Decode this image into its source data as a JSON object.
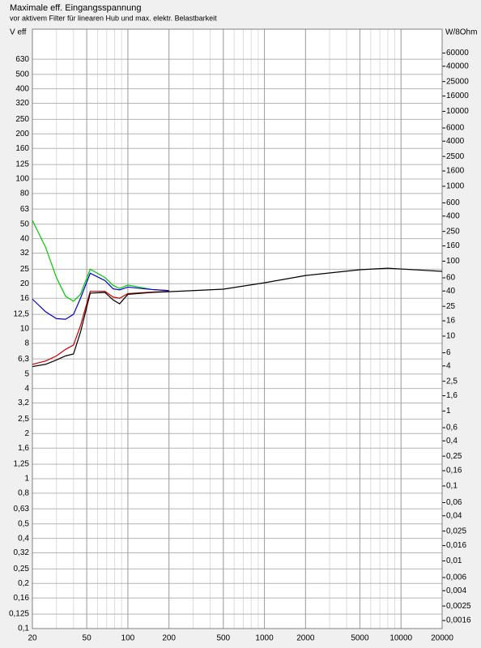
{
  "chart_data": {
    "type": "line",
    "title": "Maximale eff. Eingangsspannung",
    "subtitle": "vor aktivem Filter für linearen Hub und max. elektr. Belastbarkeit",
    "y_label": "V eff",
    "y2_label": "W/8Ohm",
    "log_x": true,
    "log_y": true,
    "grid": true,
    "x": [
      20,
      25,
      30,
      35,
      40,
      45,
      53,
      68,
      78,
      87,
      100,
      150,
      200,
      500,
      1000,
      2000,
      5000,
      8000,
      10000,
      20000
    ],
    "xlim": [
      20,
      20000
    ],
    "xticks": [
      20,
      50,
      100,
      200,
      500,
      1000,
      2000,
      5000,
      10000,
      20000
    ],
    "ylim": [
      0.1,
      1000
    ],
    "yticks": [
      {
        "value": 0.1,
        "label": "0,1"
      },
      {
        "value": 0.125,
        "label": "0,125"
      },
      {
        "value": 0.16,
        "label": "0,16"
      },
      {
        "value": 0.2,
        "label": "0,2"
      },
      {
        "value": 0.25,
        "label": "0,25"
      },
      {
        "value": 0.32,
        "label": "0,32"
      },
      {
        "value": 0.4,
        "label": "0,4"
      },
      {
        "value": 0.5,
        "label": "0,5"
      },
      {
        "value": 0.63,
        "label": "0,63"
      },
      {
        "value": 0.8,
        "label": "0,8"
      },
      1,
      {
        "value": 1.25,
        "label": "1,25"
      },
      {
        "value": 1.6,
        "label": "1,6"
      },
      2,
      {
        "value": 2.5,
        "label": "2,5"
      },
      {
        "value": 3.2,
        "label": "3,2"
      },
      4,
      5,
      {
        "value": 6.3,
        "label": "6,3"
      },
      8,
      10,
      {
        "value": 12.5,
        "label": "12,5"
      },
      16,
      20,
      25,
      32,
      40,
      50,
      63,
      80,
      100,
      125,
      160,
      200,
      250,
      320,
      400,
      500,
      630
    ],
    "y2lim": [
      0.00125,
      125000
    ],
    "y2ticks": [
      {
        "value": 0.0016,
        "label": "0,0016"
      },
      {
        "value": 0.0025,
        "label": "0,0025"
      },
      {
        "value": 0.004,
        "label": "0,004"
      },
      {
        "value": 0.006,
        "label": "0,006"
      },
      {
        "value": 0.01,
        "label": "0,01"
      },
      {
        "value": 0.016,
        "label": "0,016"
      },
      {
        "value": 0.025,
        "label": "0,025"
      },
      {
        "value": 0.04,
        "label": "0,04"
      },
      {
        "value": 0.06,
        "label": "0,06"
      },
      {
        "value": 0.1,
        "label": "0,1"
      },
      {
        "value": 0.16,
        "label": "0,16"
      },
      {
        "value": 0.25,
        "label": "0,25"
      },
      {
        "value": 0.4,
        "label": "0,4"
      },
      {
        "value": 0.6,
        "label": "0,6"
      },
      1,
      {
        "value": 1.6,
        "label": "1,6"
      },
      {
        "value": 2.5,
        "label": "2,5"
      },
      4,
      6,
      10,
      16,
      25,
      40,
      60,
      100,
      160,
      250,
      400,
      600,
      1000,
      1600,
      2500,
      4000,
      6000,
      10000,
      16000,
      25000,
      40000,
      60000
    ],
    "series": [
      {
        "color": "#00c800",
        "values": [
          53,
          35,
          22,
          16.5,
          15.3,
          17,
          25,
          22,
          19.5,
          18.6,
          19.6,
          18.3,
          18,
          null,
          null,
          null,
          null,
          null,
          null,
          null
        ]
      },
      {
        "color": "#0000c8",
        "values": [
          15.8,
          13,
          11.7,
          11.6,
          12.5,
          16,
          23.5,
          21,
          18.5,
          18.2,
          19,
          18.3,
          18,
          null,
          null,
          null,
          null,
          null,
          null,
          null
        ]
      },
      {
        "color": "#c80000",
        "values": [
          5.8,
          6.1,
          6.6,
          7.3,
          7.8,
          10.5,
          17.8,
          17.8,
          16.3,
          16,
          17.2,
          17.6,
          17.8,
          null,
          null,
          null,
          null,
          null,
          null,
          null
        ]
      },
      {
        "color": "#000000",
        "values": [
          5.6,
          5.8,
          6.2,
          6.6,
          6.8,
          9.5,
          17.3,
          17.5,
          15.6,
          14.7,
          17,
          17.5,
          17.7,
          18.4,
          20.3,
          22.7,
          24.8,
          25.4,
          25.1,
          24.2
        ]
      }
    ]
  }
}
